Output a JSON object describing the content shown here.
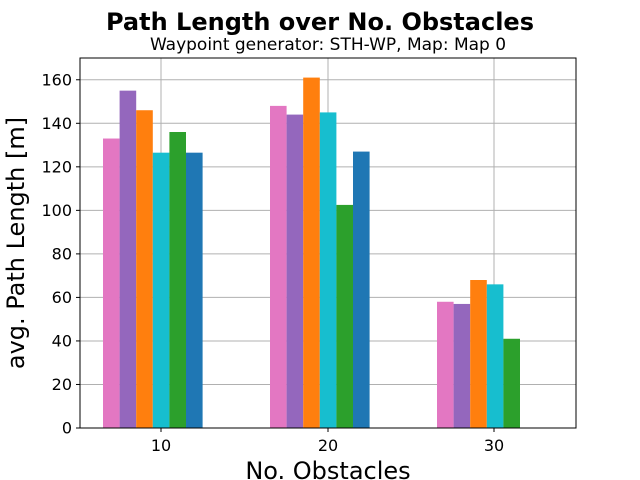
{
  "chart_data": {
    "type": "bar",
    "title": "Path Length over No. Obstacles",
    "subtitle": "Waypoint generator: STH-WP, Map: Map 0",
    "xlabel": "No. Obstacles",
    "ylabel": "avg. Path Length [m]",
    "categories": [
      "10",
      "20",
      "30"
    ],
    "ylim": [
      0,
      170
    ],
    "yticks": [
      0,
      20,
      40,
      60,
      80,
      100,
      120,
      140,
      160
    ],
    "grid": true,
    "legend": "none",
    "series": [
      {
        "color": "#e377c2",
        "values": [
          133,
          148,
          58
        ]
      },
      {
        "color": "#9467bd",
        "values": [
          155,
          144,
          57
        ]
      },
      {
        "color": "#ff7f0e",
        "values": [
          146,
          161,
          68
        ]
      },
      {
        "color": "#17becf",
        "values": [
          126.5,
          145,
          66
        ]
      },
      {
        "color": "#2ca02c",
        "values": [
          136,
          102.5,
          41
        ]
      },
      {
        "color": "#1f77b4",
        "values": [
          126.5,
          127,
          null
        ]
      }
    ]
  }
}
